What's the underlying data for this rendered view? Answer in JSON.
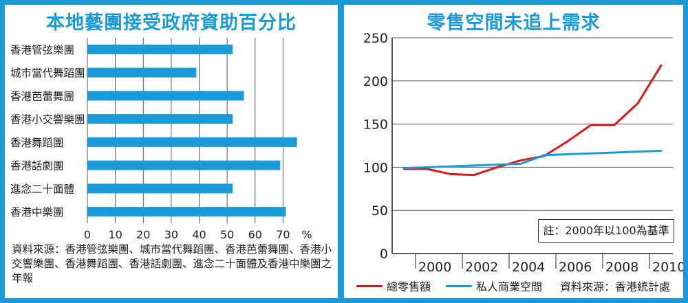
{
  "left_title": "本地藝團接受政府資助百分比",
  "right_title": "零售空間未追上需求",
  "left_source": "資料來源：香港管弦樂團、城市當代舞蹈團、香港芭蕾舞團、香港小交響樂團、香港舞蹈團、香港話劇團、進念二十面體及香港中樂團之年報",
  "right_source": "資料來源：香港統計處",
  "right_note": "註：2000年以100為基準",
  "colors": {
    "accent": "#1a9ad6",
    "retail_sales": "#d7191c",
    "private_space": "#1a9ad6"
  },
  "chart_data": [
    {
      "type": "bar",
      "orientation": "horizontal",
      "categories": [
        "香港管弦樂團",
        "城市當代舞蹈團",
        "香港芭蕾舞團",
        "香港小交響樂團",
        "香港舞蹈團",
        "香港話劇團",
        "進念二十面體",
        "香港中樂團"
      ],
      "values": [
        52,
        39,
        56,
        52,
        75,
        69,
        52,
        71
      ],
      "xlim": [
        0,
        80
      ],
      "xticks": [
        "0",
        "10",
        "20",
        "30",
        "40",
        "50",
        "60",
        "70"
      ],
      "unit_label": "%",
      "grid": true
    },
    {
      "type": "line",
      "ylim": [
        0,
        250
      ],
      "yticks": [
        "0",
        "50",
        "100",
        "150",
        "200",
        "250"
      ],
      "xticks": [
        "2000",
        "2002",
        "2004",
        "2006",
        "2008",
        "2010"
      ],
      "grid": true,
      "series": [
        {
          "name": "總零售額",
          "x": [
            1999.5,
            2000.5,
            2001.5,
            2002.5,
            2003.5,
            2004.5,
            2005.5,
            2006.5,
            2007.5,
            2008.5,
            2009.5,
            2010.5
          ],
          "y": [
            98,
            98,
            92,
            91,
            100,
            108,
            113,
            130,
            149,
            149,
            174,
            218
          ]
        },
        {
          "name": "私人商業空間",
          "x": [
            1999.5,
            2004.5,
            2005.5,
            2010.5
          ],
          "y": [
            99,
            104,
            114,
            119
          ]
        }
      ]
    }
  ]
}
